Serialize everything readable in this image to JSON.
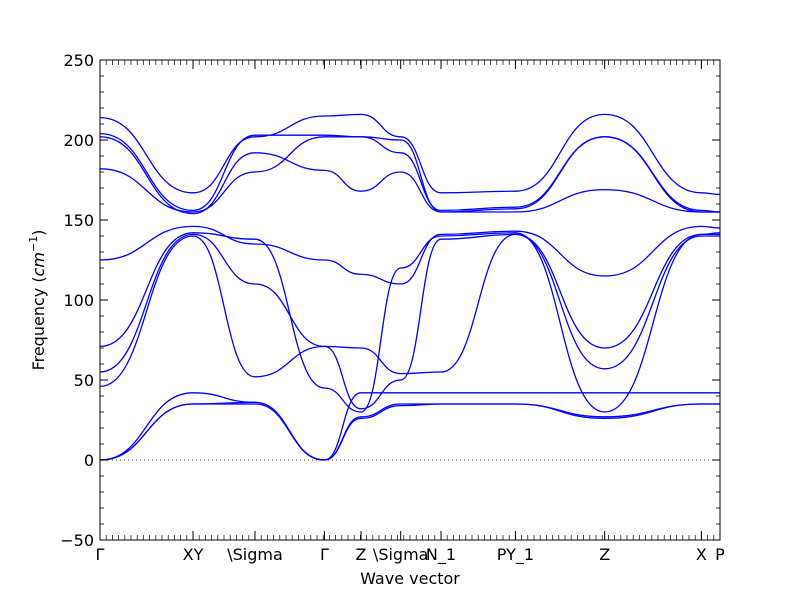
{
  "chart_data": {
    "type": "line",
    "xlabel": "Wave vector",
    "ylabel_text": "Frequency (",
    "ylabel_unit": "cm",
    "ylabel_exp": "−1",
    "ylabel_close": ")",
    "ylim": [
      -50,
      250
    ],
    "yticks": [
      -50,
      0,
      50,
      100,
      150,
      200,
      250
    ],
    "xlim": [
      0,
      1
    ],
    "zero_line": true,
    "line_color": "#0000ff",
    "special_points": [
      {
        "label": "Γ",
        "x": 0.0
      },
      {
        "label": "XY",
        "x": 0.15
      },
      {
        "label": "\\Sigma",
        "x": 0.25
      },
      {
        "label": "Γ",
        "x": 0.362
      },
      {
        "label": "Z",
        "x": 0.421
      },
      {
        "label": "\\Sigma",
        "x": 0.485
      },
      {
        "label": "N_1",
        "x": 0.55
      },
      {
        "label": "PY_1",
        "x": 0.67
      },
      {
        "label": "Z",
        "x": 0.814
      },
      {
        "label": "X",
        "x": 0.97
      },
      {
        "label": "P",
        "x": 1.0
      }
    ],
    "band_x": [
      0.0,
      0.15,
      0.25,
      0.362,
      0.421,
      0.485,
      0.55,
      0.67,
      0.814,
      0.97,
      1.0
    ],
    "series": [
      {
        "values": [
          0,
          35,
          36,
          0,
          26,
          34,
          35,
          35,
          26,
          35,
          35
        ]
      },
      {
        "values": [
          0,
          35,
          35,
          0,
          27,
          35,
          35,
          35,
          27,
          35,
          35
        ]
      },
      {
        "values": [
          0,
          42,
          36,
          0,
          42,
          42,
          42,
          42,
          42,
          42,
          42
        ]
      },
      {
        "values": [
          46,
          140,
          52,
          71,
          70,
          54,
          55,
          141,
          57,
          140,
          140
        ]
      },
      {
        "values": [
          55,
          141,
          110,
          71,
          32,
          50,
          138,
          141,
          70,
          141,
          141
        ]
      },
      {
        "values": [
          71,
          142,
          138,
          45,
          30,
          120,
          140,
          142,
          30,
          141,
          142
        ]
      },
      {
        "values": [
          125,
          146,
          135,
          125,
          116,
          110,
          141,
          143,
          115,
          146,
          145
        ]
      },
      {
        "values": [
          182,
          155,
          180,
          202,
          202,
          200,
          155,
          155,
          169,
          155,
          155
        ]
      },
      {
        "values": [
          202,
          154,
          192,
          181,
          168,
          180,
          155,
          157,
          202,
          156,
          155
        ]
      },
      {
        "values": [
          204,
          156,
          203,
          203,
          202,
          192,
          156,
          158,
          202,
          155,
          155
        ]
      },
      {
        "values": [
          214,
          167,
          202,
          215,
          216,
          202,
          167,
          168,
          216,
          167,
          166
        ]
      }
    ]
  }
}
